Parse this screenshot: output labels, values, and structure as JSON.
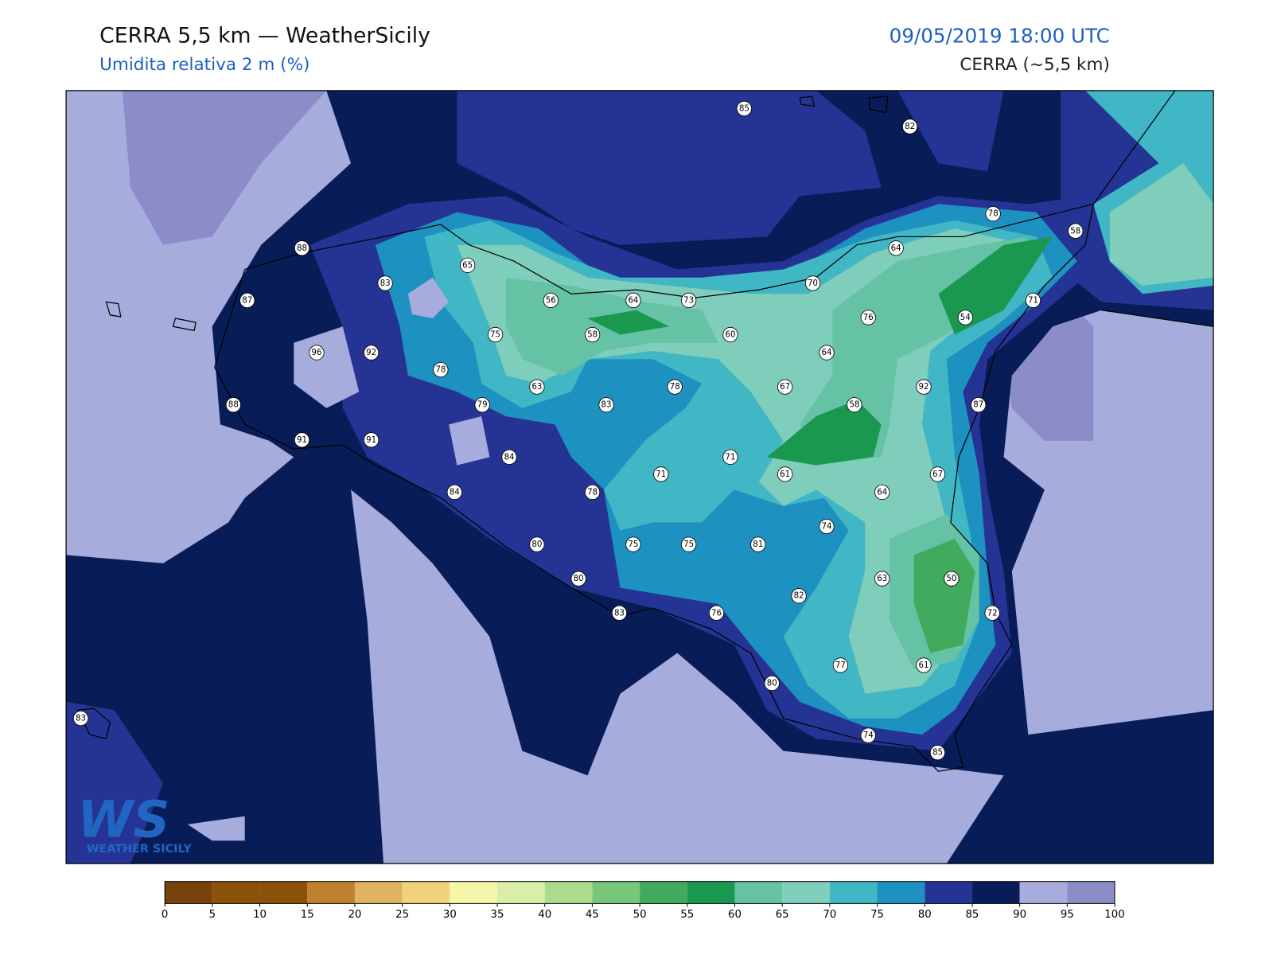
{
  "header": {
    "title": "CERRA 5,5 km — WeatherSicily",
    "subtitle": "Umidita relativa 2 m (%)",
    "datetime": "09/05/2019 18:00 UTC",
    "model": "CERRA (~5,5 km)"
  },
  "map": {
    "stations": [
      85,
      82,
      78,
      58,
      64,
      88,
      65,
      83,
      70,
      87,
      56,
      64,
      73,
      71,
      76,
      54,
      75,
      58,
      60,
      96,
      92,
      64,
      78,
      63,
      78,
      67,
      92,
      88,
      79,
      83,
      58,
      87,
      91,
      91,
      84,
      71,
      71,
      61,
      67,
      84,
      78,
      64,
      74,
      80,
      75,
      75,
      81,
      80,
      63,
      50,
      82,
      83,
      76,
      72,
      77,
      61,
      80,
      83,
      74,
      85
    ],
    "colorbar": {
      "ticks": [
        0,
        5,
        10,
        15,
        20,
        25,
        30,
        35,
        40,
        45,
        50,
        55,
        60,
        65,
        70,
        75,
        80,
        85,
        90,
        95,
        100
      ],
      "colors": [
        "#77420b",
        "#8c510a",
        "#8c510a",
        "#bf812d",
        "#dfb35f",
        "#f0d27a",
        "#f6f6aa",
        "#d9efa8",
        "#abdc8d",
        "#78c679",
        "#41ab5d",
        "#1a9850",
        "#66c2a4",
        "#7fcdbb",
        "#41b6c4",
        "#1d91c0",
        "#253494",
        "#081d58",
        "#a6acdc",
        "#8c8cc8"
      ]
    }
  },
  "logo": {
    "mark": "WS",
    "name": "WEATHER SICILY"
  }
}
